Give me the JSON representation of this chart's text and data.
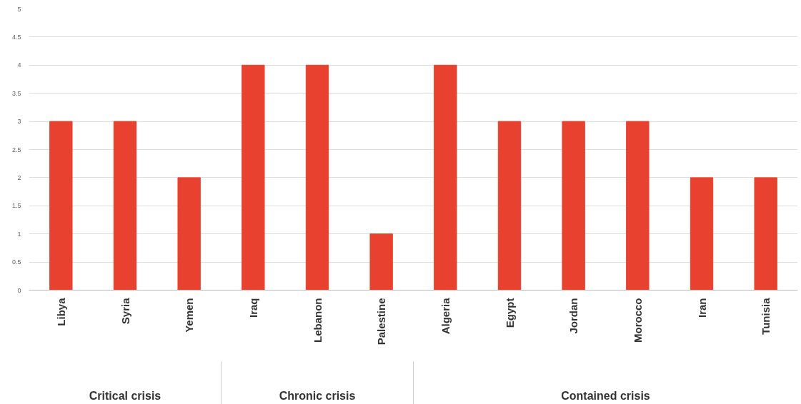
{
  "chart_data": {
    "type": "bar",
    "categories": [
      "Libya",
      "Syria",
      "Yemen",
      "Iraq",
      "Lebanon",
      "Palestine",
      "Algeria",
      "Egypt",
      "Jordan",
      "Morocco",
      "Iran",
      "Tunisia"
    ],
    "values": [
      3,
      3,
      2,
      4,
      4,
      1,
      4,
      3,
      3,
      3,
      2,
      2
    ],
    "color": "#e8412f",
    "ylim": [
      0,
      5
    ],
    "yticks": [
      0,
      0.5,
      1,
      1.5,
      2,
      2.5,
      3,
      3.5,
      4,
      4.5,
      5
    ],
    "grid": "y",
    "annotations": [
      "Critical crisis",
      "Chronic crisis",
      "Contained crisis"
    ]
  }
}
